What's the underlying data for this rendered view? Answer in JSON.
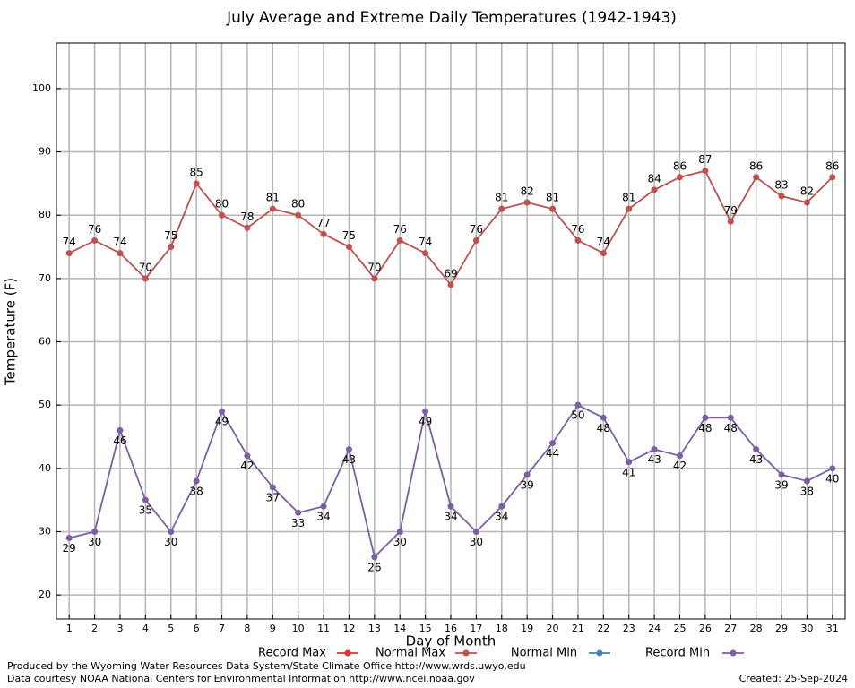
{
  "chart_data": {
    "type": "line",
    "title": "July Average and Extreme Daily Temperatures (1942-1943)",
    "xlabel": "Day of Month",
    "ylabel": "Temperature (F)",
    "x": [
      1,
      2,
      3,
      4,
      5,
      6,
      7,
      8,
      9,
      10,
      11,
      12,
      13,
      14,
      15,
      16,
      17,
      18,
      19,
      20,
      21,
      22,
      23,
      24,
      25,
      26,
      27,
      28,
      29,
      30,
      31
    ],
    "xlim": [
      0.5,
      31.5
    ],
    "xticks": [
      1,
      2,
      3,
      4,
      5,
      6,
      7,
      8,
      9,
      10,
      11,
      12,
      13,
      14,
      15,
      16,
      17,
      18,
      19,
      20,
      21,
      22,
      23,
      24,
      25,
      26,
      27,
      28,
      29,
      30,
      31
    ],
    "ylim": [
      16.2,
      107.2
    ],
    "yticks": [
      20,
      30,
      40,
      50,
      60,
      70,
      80,
      90,
      100
    ],
    "grid": true,
    "series": [
      {
        "name": "Record Max",
        "color": "#e8312a",
        "values": [
          null,
          null,
          null,
          null,
          null,
          null,
          null,
          null,
          null,
          null,
          null,
          null,
          null,
          null,
          null,
          null,
          null,
          null,
          null,
          null,
          null,
          null,
          null,
          null,
          null,
          null,
          null,
          null,
          null,
          null,
          null
        ]
      },
      {
        "name": "Normal Max",
        "color": "#c0504d",
        "values": [
          74,
          76,
          74,
          70,
          75,
          85,
          80,
          78,
          81,
          80,
          77,
          75,
          70,
          76,
          74,
          69,
          76,
          81,
          82,
          81,
          76,
          74,
          81,
          84,
          86,
          87,
          79,
          86,
          83,
          82,
          86
        ]
      },
      {
        "name": "Normal Min",
        "color": "#4682b4",
        "values": [
          null,
          null,
          null,
          null,
          null,
          null,
          null,
          null,
          null,
          null,
          null,
          null,
          null,
          null,
          null,
          null,
          null,
          null,
          null,
          null,
          null,
          null,
          null,
          null,
          null,
          null,
          null,
          null,
          null,
          null,
          null
        ]
      },
      {
        "name": "Record Min",
        "color": "#7b5ea7",
        "values": [
          29,
          30,
          46,
          35,
          30,
          38,
          49,
          42,
          37,
          33,
          34,
          43,
          26,
          30,
          49,
          34,
          30,
          34,
          39,
          44,
          50,
          48,
          41,
          43,
          42,
          48,
          48,
          43,
          39,
          38,
          40
        ]
      }
    ],
    "footer_left": [
      "Produced by the Wyoming Water Resources Data System/State Climate Office http://www.wrds.uwyo.edu",
      "Data courtesy NOAA National Centers for Environmental Information http://www.ncei.noaa.gov"
    ],
    "footer_right": "Created:  25-Sep-2024"
  }
}
